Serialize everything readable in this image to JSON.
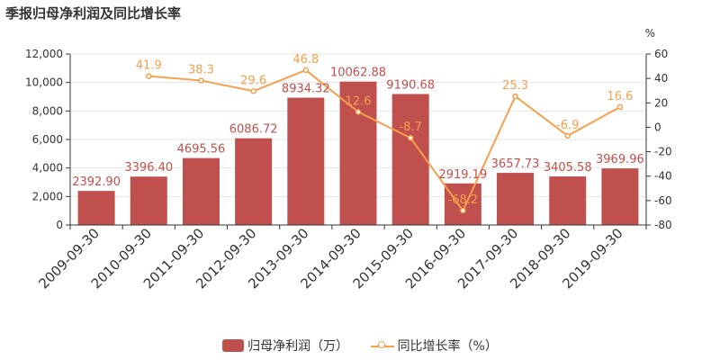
{
  "title": "季报归母净利润及同比增长率",
  "right_unit": "%",
  "colors": {
    "bar": "#c0504d",
    "line": "#f4a04c",
    "bar_label": "#c0504d",
    "line_label": "#f4a04c",
    "axis": "#333333",
    "grid": "#e6e6e6"
  },
  "chart_data": {
    "type": "bar",
    "title": "季报归母净利润及同比增长率",
    "categories": [
      "2009-09-30",
      "2010-09-30",
      "2011-09-30",
      "2012-09-30",
      "2013-09-30",
      "2014-09-30",
      "2015-09-30",
      "2016-09-30",
      "2017-09-30",
      "2018-09-30",
      "2019-09-30"
    ],
    "series": [
      {
        "name": "归母净利润（万）",
        "type": "bar",
        "axis": "left",
        "values": [
          2392.9,
          3396.4,
          4695.56,
          6086.72,
          8934.32,
          10062.88,
          9190.68,
          2919.19,
          3657.73,
          3405.58,
          3969.96
        ],
        "labels": [
          "2392.90",
          "3396.40",
          "4695.56",
          "6086.72",
          "8934.32",
          "10062.88",
          "9190.68",
          "2919.19",
          "3657.73",
          "3405.58",
          "3969.96"
        ]
      },
      {
        "name": "同比增长率（%）",
        "type": "line",
        "axis": "right",
        "values": [
          null,
          41.9,
          38.3,
          29.6,
          46.8,
          12.6,
          -8.7,
          -68.2,
          25.3,
          -6.9,
          16.6
        ],
        "labels": [
          "",
          "41.9",
          "38.3",
          "29.6",
          "46.8",
          "12.6",
          "-8.7",
          "-68.2",
          "25.3",
          "-6.9",
          "16.6"
        ]
      }
    ],
    "y_left": {
      "ylim": [
        0,
        12000
      ],
      "ticks": [
        0,
        2000,
        4000,
        6000,
        8000,
        10000,
        12000
      ],
      "tick_labels": [
        "0",
        "2,000",
        "4,000",
        "6,000",
        "8,000",
        "10,000",
        "12,000"
      ]
    },
    "y_right": {
      "ylim": [
        -80,
        60
      ],
      "ticks": [
        -80,
        -60,
        -40,
        -20,
        0,
        20,
        40,
        60
      ],
      "tick_labels": [
        "-80",
        "-60",
        "-40",
        "-20",
        "0",
        "20",
        "40",
        "60"
      ]
    },
    "grid": true,
    "legend_position": "bottom-center"
  }
}
